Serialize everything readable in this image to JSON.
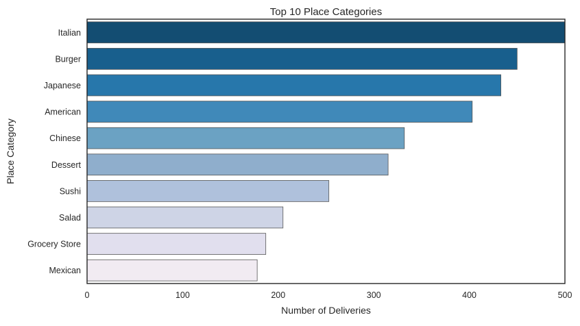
{
  "chart_data": {
    "type": "bar",
    "orientation": "horizontal",
    "title": "Top 10 Place Categories",
    "xlabel": "Number of Deliveries",
    "ylabel": "Place Category",
    "xlim": [
      0,
      500
    ],
    "xticks": [
      0,
      100,
      200,
      300,
      400,
      500
    ],
    "grid": false,
    "legend": "none",
    "categories": [
      "Italian",
      "Burger",
      "Japanese",
      "American",
      "Chinese",
      "Dessert",
      "Sushi",
      "Salad",
      "Grocery Store",
      "Mexican"
    ],
    "values": [
      502,
      450,
      433,
      403,
      332,
      315,
      253,
      205,
      187,
      178
    ],
    "colors": [
      "#134d72",
      "#185f8d",
      "#2777ab",
      "#4089b9",
      "#6ba2c3",
      "#8faecc",
      "#afc1dc",
      "#ced4e6",
      "#e1dfee",
      "#f1ebf2"
    ],
    "bar_edge_color": "#555555"
  }
}
